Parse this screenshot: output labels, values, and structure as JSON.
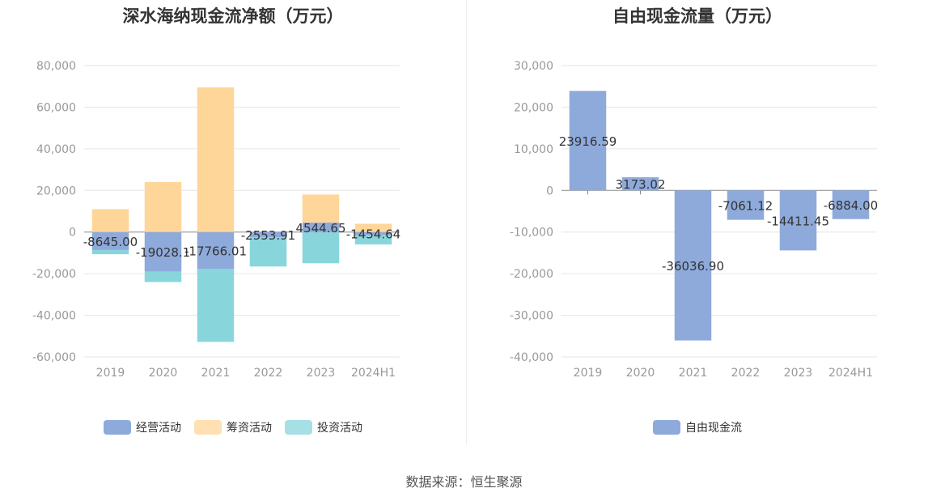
{
  "source": "数据来源：恒生聚源",
  "chart_data": [
    {
      "type": "bar",
      "stacked": true,
      "title": "深水海纳现金流净额（万元）",
      "categories": [
        "2019",
        "2020",
        "2021",
        "2022",
        "2023",
        "2024H1"
      ],
      "ylim": [
        -60000,
        80000
      ],
      "yticks": [
        "80,000",
        "60,000",
        "40,000",
        "20,000",
        "0",
        "-20,000",
        "-40,000",
        "-60,000"
      ],
      "ytick_values": [
        80000,
        60000,
        40000,
        20000,
        0,
        -20000,
        -40000,
        -60000
      ],
      "grid": true,
      "legend_position": "bottom",
      "series": [
        {
          "name": "经营活动",
          "color": "#8eaadb",
          "values": [
            -8645.0,
            -19028.1,
            -17766.01,
            -2553.91,
            4544.65,
            -1454.64
          ],
          "labels": [
            "-8645.00",
            "-19028.1",
            "-17766.01",
            "-2553.91",
            "4544.65",
            "-1454.64"
          ]
        },
        {
          "name": "筹资活动",
          "color": "#ffd699",
          "values": [
            11000,
            24000,
            69500,
            0,
            13500,
            4000
          ]
        },
        {
          "name": "投资活动",
          "color": "#88d6dc",
          "values": [
            -2000,
            -5000,
            -35000,
            -14000,
            -15000,
            -4500
          ]
        }
      ]
    },
    {
      "type": "bar",
      "title": "自由现金流量（万元）",
      "categories": [
        "2019",
        "2020",
        "2021",
        "2022",
        "2023",
        "2024H1"
      ],
      "ylim": [
        -40000,
        30000
      ],
      "yticks": [
        "30,000",
        "20,000",
        "10,000",
        "0",
        "-10,000",
        "-20,000",
        "-30,000",
        "-40,000"
      ],
      "ytick_values": [
        30000,
        20000,
        10000,
        0,
        -10000,
        -20000,
        -30000,
        -40000
      ],
      "grid": true,
      "legend_position": "bottom",
      "series": [
        {
          "name": "自由现金流",
          "color": "#8eaadb",
          "values": [
            23916.59,
            3173.02,
            -36036.9,
            -7061.12,
            -14411.45,
            -6884.0
          ],
          "labels": [
            "23916.59",
            "3173.02",
            "-36036.90",
            "-7061.12",
            "-14411.45",
            "-6884.00"
          ]
        }
      ]
    }
  ]
}
